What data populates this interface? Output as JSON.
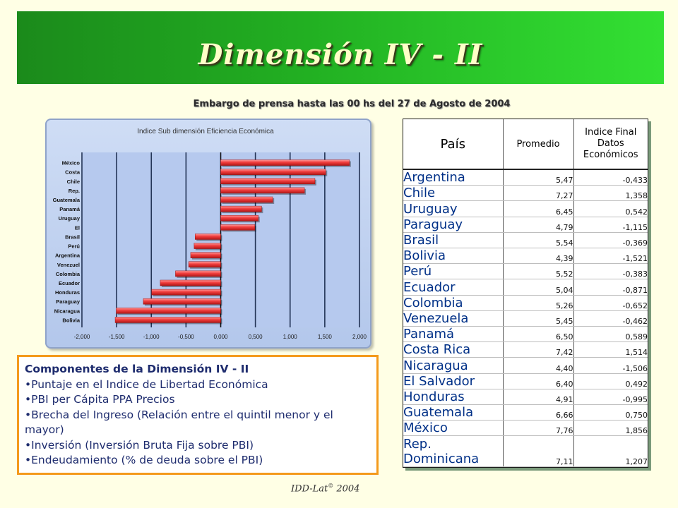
{
  "header": {
    "title": "Dimensión IV  - II",
    "embargo": "Embargo de prensa hasta las 00 hs del 27 de Agosto de 2004"
  },
  "colors": {
    "banner_start": "#1B8A1B",
    "banner_end": "#33E033",
    "bar_red": "#F03C3C",
    "chart_bg": "#B3C7EB",
    "components_border": "#F49A1C",
    "country_text": "#003087"
  },
  "chart_data": {
    "type": "bar",
    "orientation": "horizontal",
    "title": "Indice Sub dimensión Eficiencia Económica",
    "categories": [
      "México",
      "Costa",
      "Chile",
      "Rep.",
      "Guatemala",
      "Panamá",
      "Uruguay",
      "El",
      "Brasil",
      "Perú",
      "Argentina",
      "Venezuel",
      "Colombia",
      "Ecuador",
      "Honduras",
      "Paraguay",
      "Nicaragua",
      "Bolivia"
    ],
    "values": [
      1.856,
      1.514,
      1.358,
      1.207,
      0.75,
      0.589,
      0.542,
      0.492,
      -0.369,
      -0.383,
      -0.433,
      -0.462,
      -0.652,
      -0.871,
      -0.995,
      -1.115,
      -1.506,
      -1.521
    ],
    "xticks": [
      "-2,000",
      "-1,500",
      "-1,000",
      "-0,500",
      "0,000",
      "0,500",
      "1,000",
      "1,500",
      "2,000"
    ],
    "xlim": [
      -2,
      2
    ],
    "grid": true
  },
  "components": {
    "title": "Componentes de la Dimensión IV - II",
    "items": [
      "•Puntaje en el Indice de Libertad Económica",
      "•PBI per Cápita PPA Precios",
      "•Brecha del Ingreso (Relación entre el quintil menor y el mayor)",
      "•Inversión (Inversión Bruta Fija sobre PBI)",
      "•Endeudamiento (% de deuda sobre el PBI)"
    ]
  },
  "table": {
    "headers": [
      "País",
      "Promedio",
      "Indice Final Datos Económicos"
    ],
    "rows": [
      {
        "pais": "Argentina",
        "promedio": "5,47",
        "indice": "-0,433"
      },
      {
        "pais": "Chile",
        "promedio": "7,27",
        "indice": "1,358"
      },
      {
        "pais": "Uruguay",
        "promedio": "6,45",
        "indice": "0,542"
      },
      {
        "pais": "Paraguay",
        "promedio": "4,79",
        "indice": "-1,115"
      },
      {
        "pais": "Brasil",
        "promedio": "5,54",
        "indice": "-0,369"
      },
      {
        "pais": "Bolivia",
        "promedio": "4,39",
        "indice": "-1,521"
      },
      {
        "pais": "Perú",
        "promedio": "5,52",
        "indice": "-0,383"
      },
      {
        "pais": "Ecuador",
        "promedio": "5,04",
        "indice": "-0,871"
      },
      {
        "pais": "Colombia",
        "promedio": "5,26",
        "indice": "-0,652"
      },
      {
        "pais": "Venezuela",
        "promedio": "5,45",
        "indice": "-0,462"
      },
      {
        "pais": "Panamá",
        "promedio": "6,50",
        "indice": "0,589"
      },
      {
        "pais": "Costa Rica",
        "promedio": "7,42",
        "indice": "1,514"
      },
      {
        "pais": "Nicaragua",
        "promedio": "4,40",
        "indice": "-1,506"
      },
      {
        "pais": "El Salvador",
        "promedio": "6,40",
        "indice": "0,492"
      },
      {
        "pais": "Honduras",
        "promedio": "4,91",
        "indice": "-0,995"
      },
      {
        "pais": "Guatemala",
        "promedio": "6,66",
        "indice": "0,750"
      },
      {
        "pais": "México",
        "promedio": "7,76",
        "indice": "1,856"
      },
      {
        "pais": "Rep. Dominicana",
        "promedio": "7,11",
        "indice": "1,207"
      }
    ]
  },
  "footer": {
    "label": "IDD-Lat",
    "copyright": "©",
    "year": " 2004"
  }
}
